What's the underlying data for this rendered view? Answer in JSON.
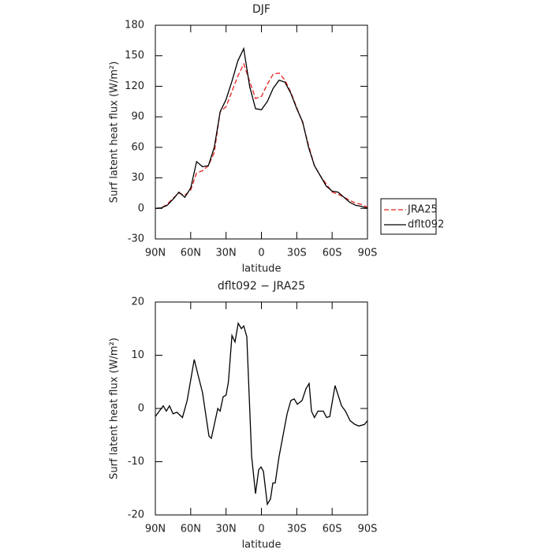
{
  "chart_data": [
    {
      "type": "line",
      "title": "DJF",
      "xlabel": "latitude",
      "ylabel": "Surf latent heat flux (W/m²)",
      "x": [
        90,
        85,
        80,
        75,
        70,
        65,
        60,
        55,
        50,
        45,
        40,
        35,
        30,
        25,
        20,
        15,
        10,
        5,
        0,
        -5,
        -10,
        -15,
        -20,
        -25,
        -30,
        -35,
        -40,
        -45,
        -50,
        -55,
        -60,
        -65,
        -70,
        -75,
        -80,
        -85,
        -90
      ],
      "series": [
        {
          "name": "JRA25",
          "color": "#e8211f",
          "dash": true,
          "values": [
            0,
            0.5,
            4,
            10,
            15,
            13,
            18,
            35,
            37,
            42,
            55,
            95,
            100,
            115,
            130,
            142,
            125,
            108,
            110,
            122,
            132,
            133,
            126,
            114,
            99,
            84,
            62,
            42,
            32,
            24,
            16,
            14,
            11,
            8,
            5,
            4,
            1
          ]
        },
        {
          "name": "dflt092",
          "color": "#000000",
          "dash": false,
          "values": [
            0,
            0.5,
            3,
            9,
            16,
            11,
            20,
            46,
            41,
            42,
            60,
            95,
            107,
            125,
            145,
            157,
            120,
            98,
            97,
            105,
            118,
            126,
            124,
            113,
            98,
            85,
            60,
            42,
            32,
            22,
            17,
            16,
            11,
            6,
            3,
            2,
            0
          ]
        }
      ],
      "xlim": [
        90,
        -90
      ],
      "xticks": [
        {
          "value": 90,
          "label": "90N"
        },
        {
          "value": 60,
          "label": "60N"
        },
        {
          "value": 30,
          "label": "30N"
        },
        0,
        {
          "value": -30,
          "label": "30S"
        },
        {
          "value": -60,
          "label": "60S"
        },
        {
          "value": -90,
          "label": "90S"
        }
      ],
      "ylim": [
        -30,
        180
      ],
      "yticks": [
        -30,
        0,
        30,
        60,
        90,
        120,
        150,
        180
      ],
      "legend": "right"
    },
    {
      "type": "line",
      "title": "dflt092 − JRA25",
      "xlabel": "latitude",
      "ylabel": "Surf latent heat flux (W/m²)",
      "x": [
        90,
        83.3,
        80.7,
        78,
        75,
        71.7,
        67,
        63,
        57,
        54,
        50,
        44.5,
        42.5,
        37,
        35,
        32.5,
        30,
        28,
        25,
        22.4,
        19.7,
        17,
        15,
        12.4,
        8.3,
        5,
        2.3,
        0.3,
        -1.7,
        -5,
        -7.7,
        -9.7,
        -11.7,
        -15,
        -21.8,
        -25,
        -27.8,
        -30.5,
        -34.5,
        -37.8,
        -40.5,
        -42.5,
        -45,
        -48,
        -52.5,
        -55.3,
        -58,
        -62.5,
        -68,
        -71.3,
        -75.3,
        -79.4,
        -82.7,
        -87.4,
        -90
      ],
      "series": [
        {
          "name": "dflt092 − JRA25",
          "color": "#000000",
          "dash": false,
          "values": [
            -1.5,
            0.5,
            -0.5,
            0.5,
            -1,
            -0.7,
            -1.7,
            1.5,
            9.2,
            6.5,
            3,
            -5.2,
            -5.6,
            0,
            -0.5,
            2.2,
            2.5,
            5,
            13.7,
            12.5,
            16,
            15,
            15.5,
            13.5,
            -9,
            -16,
            -11.5,
            -11,
            -11.8,
            -18,
            -17,
            -14,
            -14,
            -9,
            -1,
            1.5,
            1.8,
            0.8,
            1.5,
            3.7,
            4.7,
            -0.5,
            -1.7,
            -0.5,
            -0.5,
            -1.7,
            -1.5,
            4.3,
            0.5,
            -0.5,
            -2.3,
            -3,
            -3.3,
            -3,
            -2.3
          ]
        }
      ],
      "xlim": [
        90,
        -90
      ],
      "xticks": [
        {
          "value": 90,
          "label": "90N"
        },
        {
          "value": 60,
          "label": "60N"
        },
        {
          "value": 30,
          "label": "30N"
        },
        0,
        {
          "value": -30,
          "label": "30S"
        },
        {
          "value": -60,
          "label": "60S"
        },
        {
          "value": -90,
          "label": "90S"
        }
      ],
      "ylim": [
        -20,
        20
      ],
      "yticks": [
        -20,
        -10,
        0,
        10,
        20
      ]
    }
  ]
}
